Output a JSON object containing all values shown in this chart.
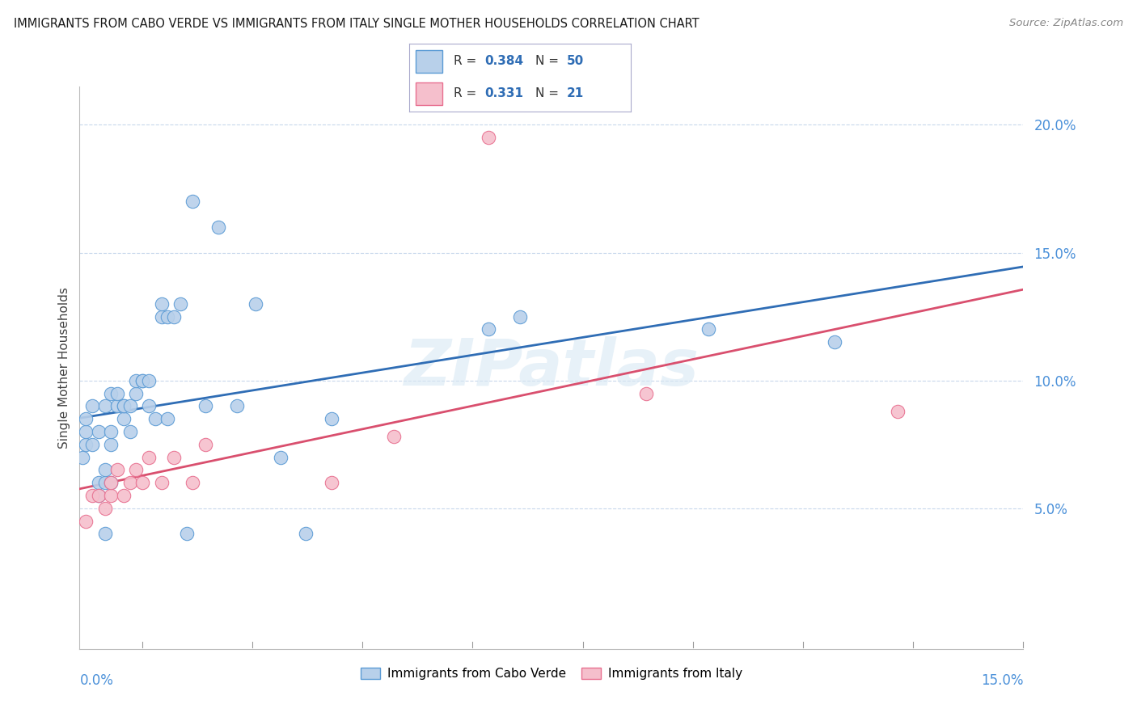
{
  "title": "IMMIGRANTS FROM CABO VERDE VS IMMIGRANTS FROM ITALY SINGLE MOTHER HOUSEHOLDS CORRELATION CHART",
  "source": "Source: ZipAtlas.com",
  "ylabel": "Single Mother Households",
  "xlim": [
    0.0,
    0.15
  ],
  "ylim": [
    -0.005,
    0.215
  ],
  "yticks": [
    0.05,
    0.1,
    0.15,
    0.2
  ],
  "ytick_labels": [
    "5.0%",
    "10.0%",
    "15.0%",
    "20.0%"
  ],
  "cabo_verde_R": "0.384",
  "cabo_verde_N": "50",
  "italy_R": "0.331",
  "italy_N": "21",
  "cabo_verde_color": "#b8d0ea",
  "cabo_verde_edge_color": "#5b9bd5",
  "cabo_verde_line_color": "#2f6db5",
  "italy_color": "#f5bfcc",
  "italy_edge_color": "#e87090",
  "italy_line_color": "#d94f6e",
  "watermark": "ZIPatlas",
  "cabo_verde_x": [
    0.0005,
    0.001,
    0.001,
    0.001,
    0.002,
    0.002,
    0.003,
    0.003,
    0.003,
    0.004,
    0.004,
    0.004,
    0.004,
    0.005,
    0.005,
    0.005,
    0.005,
    0.006,
    0.006,
    0.007,
    0.007,
    0.007,
    0.008,
    0.008,
    0.009,
    0.009,
    0.01,
    0.01,
    0.011,
    0.011,
    0.012,
    0.013,
    0.013,
    0.014,
    0.014,
    0.015,
    0.016,
    0.017,
    0.018,
    0.02,
    0.022,
    0.025,
    0.028,
    0.032,
    0.036,
    0.04,
    0.065,
    0.07,
    0.1,
    0.12
  ],
  "cabo_verde_y": [
    0.07,
    0.075,
    0.08,
    0.085,
    0.075,
    0.09,
    0.055,
    0.06,
    0.08,
    0.04,
    0.06,
    0.065,
    0.09,
    0.06,
    0.075,
    0.08,
    0.095,
    0.09,
    0.095,
    0.085,
    0.09,
    0.09,
    0.08,
    0.09,
    0.095,
    0.1,
    0.1,
    0.1,
    0.09,
    0.1,
    0.085,
    0.125,
    0.13,
    0.125,
    0.085,
    0.125,
    0.13,
    0.04,
    0.17,
    0.09,
    0.16,
    0.09,
    0.13,
    0.07,
    0.04,
    0.085,
    0.12,
    0.125,
    0.12,
    0.115
  ],
  "italy_x": [
    0.001,
    0.002,
    0.003,
    0.004,
    0.005,
    0.005,
    0.006,
    0.007,
    0.008,
    0.009,
    0.01,
    0.011,
    0.013,
    0.015,
    0.018,
    0.02,
    0.04,
    0.05,
    0.065,
    0.09,
    0.13
  ],
  "italy_y": [
    0.045,
    0.055,
    0.055,
    0.05,
    0.055,
    0.06,
    0.065,
    0.055,
    0.06,
    0.065,
    0.06,
    0.07,
    0.06,
    0.07,
    0.06,
    0.075,
    0.06,
    0.078,
    0.195,
    0.095,
    0.088
  ]
}
